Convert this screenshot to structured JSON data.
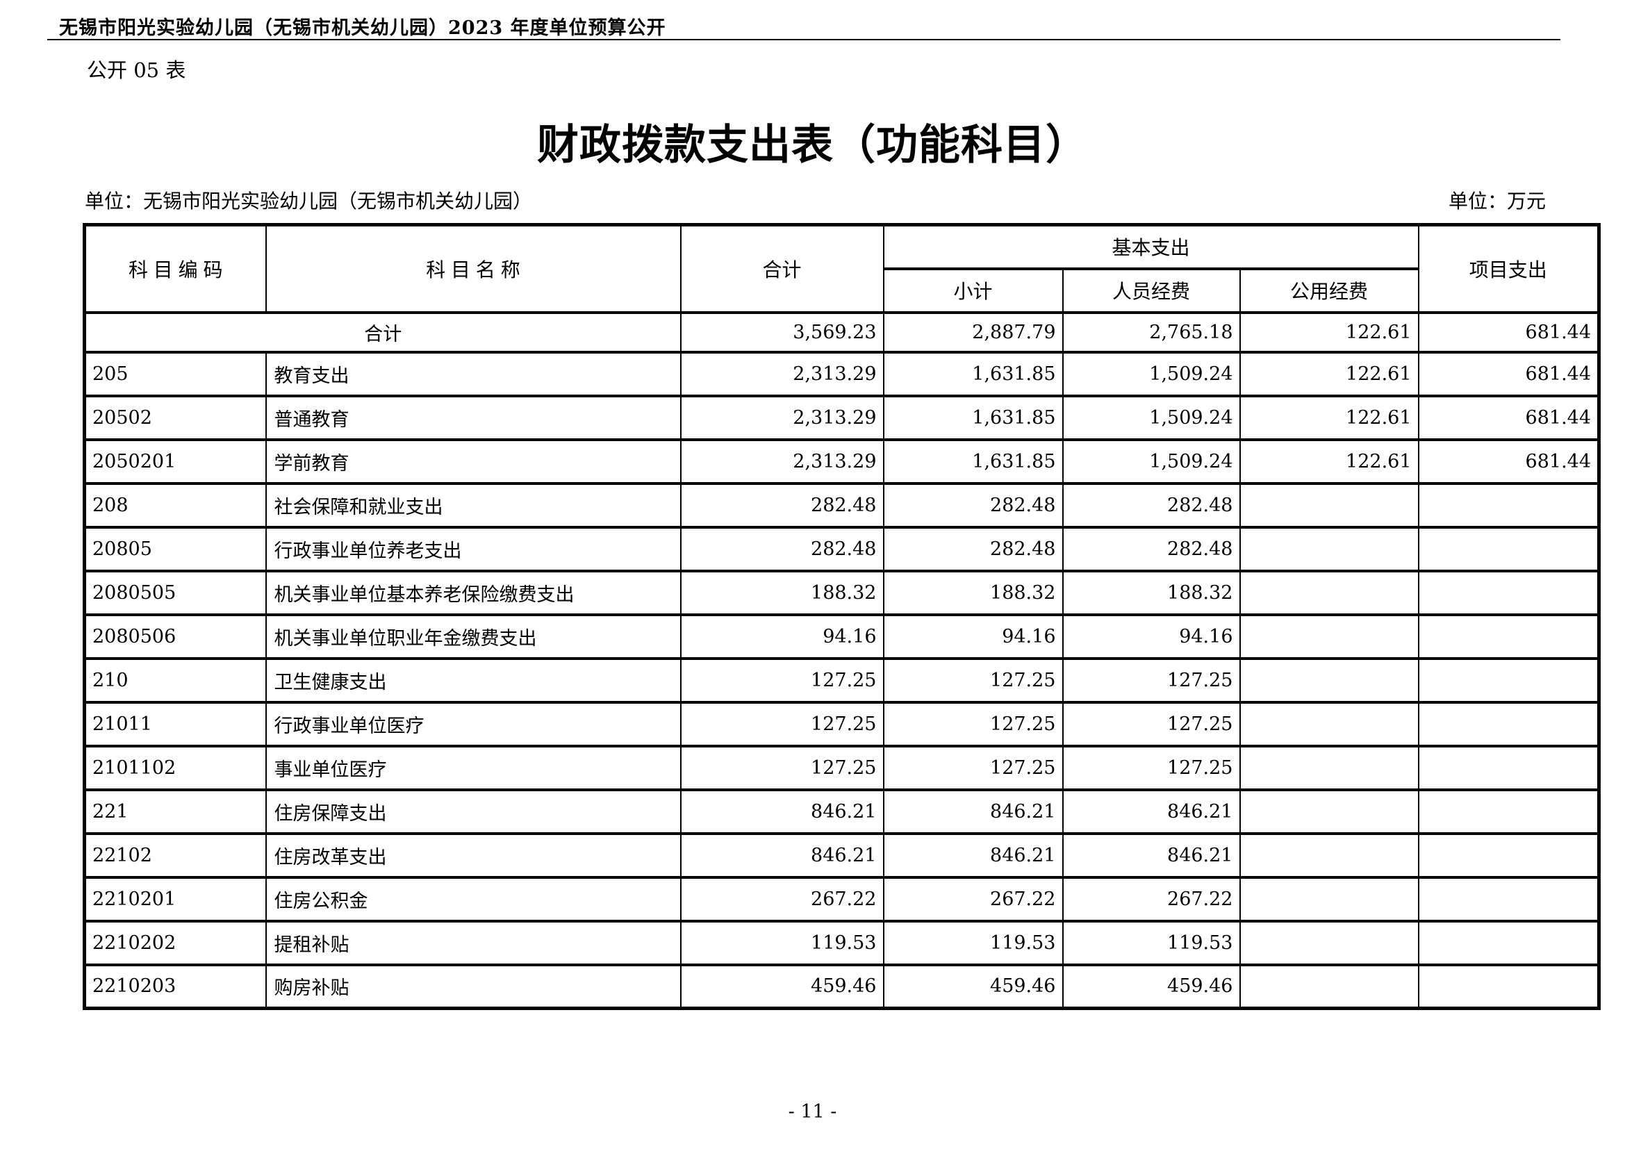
{
  "page_header": {
    "text": "无锡市阳光实验幼儿园（无锡市机关幼儿园）2023 年度单位预算公开"
  },
  "table_label": "公开 05 表",
  "title": "财政拨款支出表（功能科目）",
  "meta": {
    "unit_left": "单位：无锡市阳光实验幼儿园（无锡市机关幼儿园）",
    "unit_right": "单位：万元"
  },
  "table": {
    "headers": {
      "code": "科目编码",
      "name": "科目名称",
      "total": "合计",
      "basic_group": "基本支出",
      "subtotal": "小计",
      "personnel": "人员经费",
      "public": "公用经费",
      "project": "项目支出"
    },
    "rows": [
      {
        "merged": true,
        "code": "",
        "name": "合计",
        "values": [
          "3,569.23",
          "2,887.79",
          "2,765.18",
          "122.61",
          "681.44"
        ]
      },
      {
        "merged": false,
        "code": "205",
        "name": "教育支出",
        "values": [
          "2,313.29",
          "1,631.85",
          "1,509.24",
          "122.61",
          "681.44"
        ]
      },
      {
        "merged": false,
        "code": "20502",
        "name": "普通教育",
        "values": [
          "2,313.29",
          "1,631.85",
          "1,509.24",
          "122.61",
          "681.44"
        ]
      },
      {
        "merged": false,
        "code": "2050201",
        "name": "学前教育",
        "values": [
          "2,313.29",
          "1,631.85",
          "1,509.24",
          "122.61",
          "681.44"
        ]
      },
      {
        "merged": false,
        "code": "208",
        "name": "社会保障和就业支出",
        "values": [
          "282.48",
          "282.48",
          "282.48",
          "",
          ""
        ]
      },
      {
        "merged": false,
        "code": "20805",
        "name": "行政事业单位养老支出",
        "values": [
          "282.48",
          "282.48",
          "282.48",
          "",
          ""
        ]
      },
      {
        "merged": false,
        "code": "2080505",
        "name": "机关事业单位基本养老保险缴费支出",
        "values": [
          "188.32",
          "188.32",
          "188.32",
          "",
          ""
        ]
      },
      {
        "merged": false,
        "code": "2080506",
        "name": "机关事业单位职业年金缴费支出",
        "values": [
          "94.16",
          "94.16",
          "94.16",
          "",
          ""
        ]
      },
      {
        "merged": false,
        "code": "210",
        "name": "卫生健康支出",
        "values": [
          "127.25",
          "127.25",
          "127.25",
          "",
          ""
        ]
      },
      {
        "merged": false,
        "code": "21011",
        "name": "行政事业单位医疗",
        "values": [
          "127.25",
          "127.25",
          "127.25",
          "",
          ""
        ]
      },
      {
        "merged": false,
        "code": "2101102",
        "name": "事业单位医疗",
        "values": [
          "127.25",
          "127.25",
          "127.25",
          "",
          ""
        ]
      },
      {
        "merged": false,
        "code": "221",
        "name": "住房保障支出",
        "values": [
          "846.21",
          "846.21",
          "846.21",
          "",
          ""
        ]
      },
      {
        "merged": false,
        "code": "22102",
        "name": "住房改革支出",
        "values": [
          "846.21",
          "846.21",
          "846.21",
          "",
          ""
        ]
      },
      {
        "merged": false,
        "code": "2210201",
        "name": "住房公积金",
        "values": [
          "267.22",
          "267.22",
          "267.22",
          "",
          ""
        ]
      },
      {
        "merged": false,
        "code": "2210202",
        "name": "提租补贴",
        "values": [
          "119.53",
          "119.53",
          "119.53",
          "",
          ""
        ]
      },
      {
        "merged": false,
        "code": "2210203",
        "name": "购房补贴",
        "values": [
          "459.46",
          "459.46",
          "459.46",
          "",
          ""
        ]
      }
    ]
  },
  "footer": {
    "page_number": "- 11 -"
  }
}
